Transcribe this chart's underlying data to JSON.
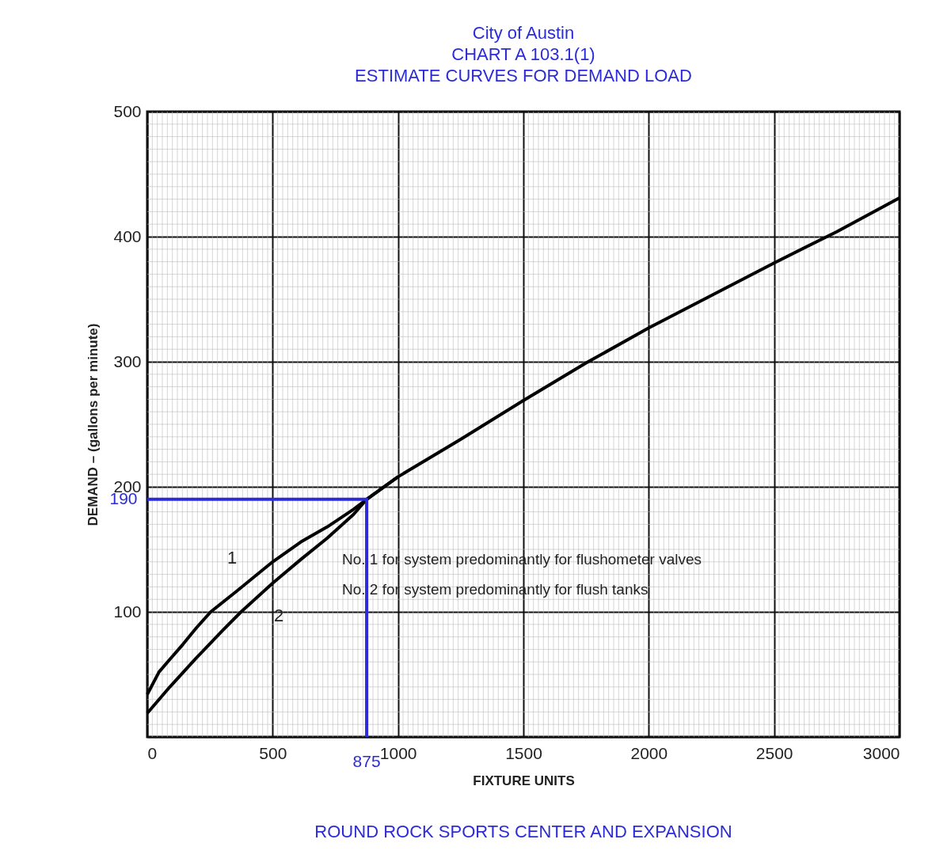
{
  "chart_data": {
    "type": "line",
    "title": "City of Austin",
    "subtitle": "CHART A 103.1(1)\nESTIMATE CURVES FOR DEMAND LOAD",
    "xlabel": "FIXTURE UNITS",
    "ylabel": "DEMAND – (gallons per minute)",
    "xlim": [
      0,
      3000
    ],
    "ylim": [
      0,
      500
    ],
    "xticks": [
      0,
      500,
      1000,
      1500,
      2000,
      2500,
      3000
    ],
    "yticks": [
      {
        "value": 0,
        "label": null
      },
      100,
      200,
      300,
      400,
      500
    ],
    "grid": true,
    "series": [
      {
        "color": "#000000",
        "x": [
          0,
          47,
          90,
          142,
          195,
          253,
          353,
          500,
          613,
          718,
          823,
          875,
          1000,
          1250,
          1500,
          1750,
          2000,
          2250,
          2500,
          2750,
          3000
        ],
        "values": [
          34,
          52,
          62,
          74,
          87,
          100,
          116,
          140,
          156,
          168,
          182,
          190,
          208,
          238,
          269,
          299,
          327,
          353,
          379,
          404,
          431
        ]
      },
      {
        "color": "#000000",
        "x": [
          0,
          90,
          195,
          300,
          374,
          500,
          613,
          718,
          823,
          875,
          1000
        ],
        "values": [
          19,
          40,
          63,
          85,
          100,
          123,
          142,
          159,
          178,
          190,
          208
        ]
      },
      {
        "color": "#2b2bd9",
        "x": [
          0,
          875,
          875
        ],
        "values": [
          190,
          190,
          0
        ]
      }
    ],
    "line_style": "solid",
    "annotations": [
      "1",
      "2",
      {
        "text": "190",
        "x": 0,
        "y": 190
      },
      {
        "text": "875",
        "x": 875,
        "y": 0
      },
      "No. 1 for system predominantly for flushometer valves",
      "No. 2 for system predominantly for flush tanks",
      "ROUND ROCK SPORTS CENTER AND EXPANSION"
    ]
  }
}
